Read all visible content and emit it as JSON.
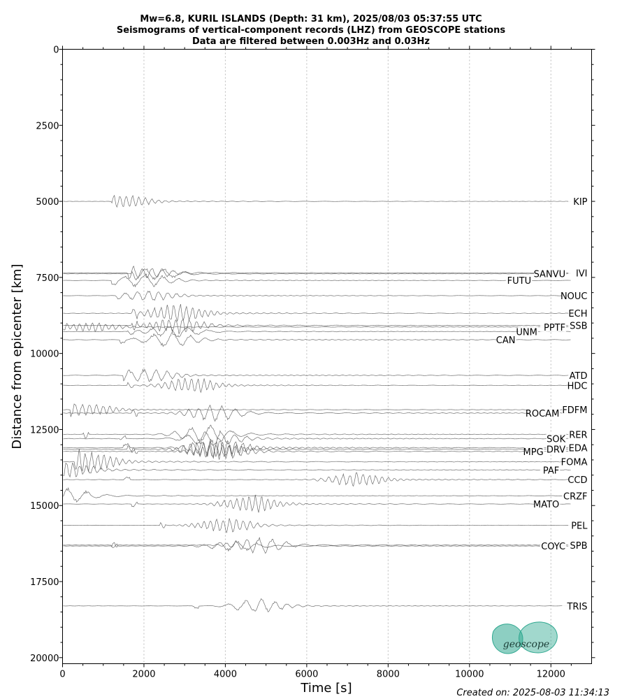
{
  "title": {
    "line1": "Mw=6.8, KURIL ISLANDS (Depth: 31 km), 2025/08/03 05:37:55 UTC",
    "line2": "Seismograms of vertical-component records (LHZ) from GEOSCOPE stations",
    "line3": "Data are filtered between 0.003Hz and 0.03Hz"
  },
  "footer": "Created on: 2025-08-03 11:34:13",
  "logo": {
    "text": "geoscope",
    "color": "#2fa890"
  },
  "chart_data": {
    "type": "line",
    "title": "Mw=6.8, KURIL ISLANDS (Depth: 31 km), 2025/08/03 05:37:55 UTC",
    "xlabel": "Time [s]",
    "ylabel": "Distance from epicenter [km]",
    "xlim": [
      0,
      13000
    ],
    "ylim": [
      20200,
      0
    ],
    "y_inverted": true,
    "x_ticks": [
      0,
      2000,
      4000,
      6000,
      8000,
      10000,
      12000
    ],
    "y_ticks": [
      0,
      2500,
      5000,
      7500,
      10000,
      12500,
      15000,
      17500,
      20000
    ],
    "grid": "vertical dotted at x ticks",
    "trace_color": "#555555",
    "stations": [
      {
        "name": "KIP",
        "distance": 5000,
        "arrival": 1200,
        "peak": 1500,
        "amp": 1.0,
        "noise": 0.15
      },
      {
        "name": "IVI",
        "distance": 7350,
        "arrival": 1600,
        "peak": 2100,
        "amp": 0.9,
        "noise": 0.2
      },
      {
        "name": "SANVU",
        "distance": 7380,
        "arrival": 1700,
        "peak": 2200,
        "amp": 1.0,
        "noise": 0.2
      },
      {
        "name": "FUTU",
        "distance": 7600,
        "arrival": 1200,
        "peak": 2000,
        "amp": 1.1,
        "noise": 0.2
      },
      {
        "name": "NOUC",
        "distance": 8100,
        "arrival": 1300,
        "peak": 2100,
        "amp": 0.9,
        "noise": 0.2
      },
      {
        "name": "ECH",
        "distance": 8680,
        "arrival": 1700,
        "peak": 2800,
        "amp": 1.6,
        "noise": 0.3
      },
      {
        "name": "SSB",
        "distance": 9080,
        "arrival": 1700,
        "peak": 2800,
        "amp": 1.3,
        "noise": 0.3
      },
      {
        "name": "PPTF",
        "distance": 9130,
        "arrival": 0,
        "peak": 700,
        "amp": 0.8,
        "noise": 0.25
      },
      {
        "name": "UNM",
        "distance": 9280,
        "arrival": 1600,
        "peak": 2700,
        "amp": 1.0,
        "noise": 0.25
      },
      {
        "name": "CAN",
        "distance": 9550,
        "arrival": 1400,
        "peak": 2600,
        "amp": 1.2,
        "noise": 0.3
      },
      {
        "name": "ATD",
        "distance": 10720,
        "arrival": 1500,
        "peak": 2100,
        "amp": 1.1,
        "noise": 0.3
      },
      {
        "name": "HDC",
        "distance": 11050,
        "arrival": 1600,
        "peak": 3100,
        "amp": 1.3,
        "noise": 0.25
      },
      {
        "name": "FDFM",
        "distance": 11850,
        "arrival": 200,
        "peak": 600,
        "amp": 1.0,
        "noise": 0.3
      },
      {
        "name": "ROCAM",
        "distance": 11960,
        "arrival": 1700,
        "peak": 3700,
        "amp": 1.3,
        "noise": 0.3
      },
      {
        "name": "RER",
        "distance": 12660,
        "arrival": 500,
        "peak": 3500,
        "amp": 1.5,
        "noise": 0.3
      },
      {
        "name": "SOK",
        "distance": 12800,
        "arrival": 1400,
        "peak": 3700,
        "amp": 1.3,
        "noise": 0.35
      },
      {
        "name": "EDA",
        "distance": 13100,
        "arrival": 1500,
        "peak": 3800,
        "amp": 1.7,
        "noise": 0.35
      },
      {
        "name": "DRV",
        "distance": 13150,
        "arrival": 1600,
        "peak": 3600,
        "amp": 1.4,
        "noise": 0.35
      },
      {
        "name": "MPG",
        "distance": 13220,
        "arrival": 1700,
        "peak": 3900,
        "amp": 1.4,
        "noise": 0.35
      },
      {
        "name": "FOMA",
        "distance": 13560,
        "arrival": 300,
        "peak": 600,
        "amp": 1.6,
        "noise": 0.35
      },
      {
        "name": "PAF",
        "distance": 13830,
        "arrival": 0,
        "peak": 100,
        "amp": 1.2,
        "noise": 0.4
      },
      {
        "name": "CCD",
        "distance": 14150,
        "arrival": 1500,
        "peak": 7200,
        "amp": 1.1,
        "noise": 0.35
      },
      {
        "name": "CRZF",
        "distance": 14680,
        "arrival": 0,
        "peak": 100,
        "amp": 1.1,
        "noise": 0.3
      },
      {
        "name": "MATO",
        "distance": 14950,
        "arrival": 1700,
        "peak": 4600,
        "amp": 1.4,
        "noise": 0.2
      },
      {
        "name": "PEL",
        "distance": 15650,
        "arrival": 2400,
        "peak": 4000,
        "amp": 1.2,
        "noise": 0.2
      },
      {
        "name": "SPB",
        "distance": 16300,
        "arrival": 1200,
        "peak": 4800,
        "amp": 1.3,
        "noise": 0.2
      },
      {
        "name": "COYC",
        "distance": 16330,
        "arrival": 1200,
        "peak": 4200,
        "amp": 0.8,
        "noise": 0.2
      },
      {
        "name": "TRIS",
        "distance": 18300,
        "arrival": 3200,
        "peak": 4800,
        "amp": 1.1,
        "noise": 0.15
      }
    ]
  }
}
